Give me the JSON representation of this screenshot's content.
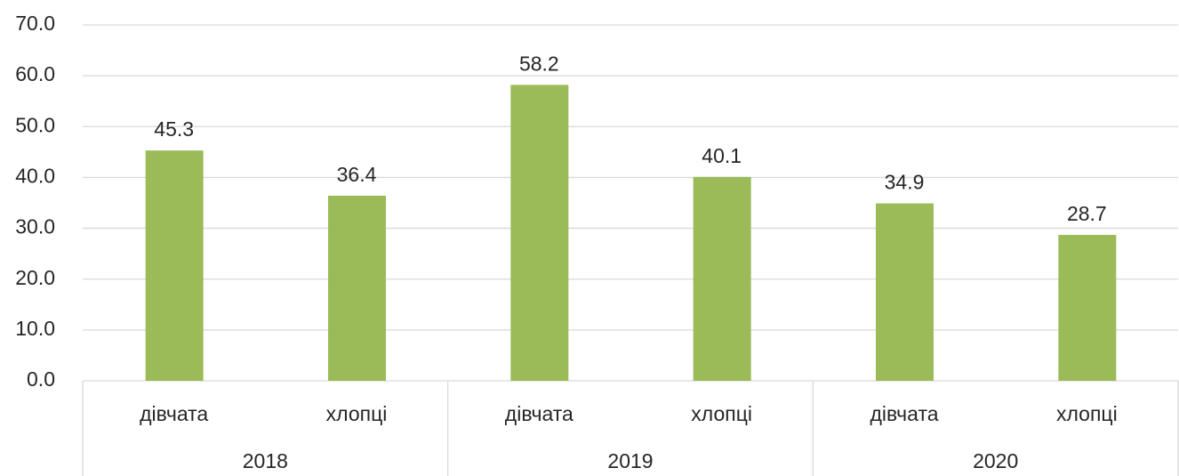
{
  "chart_data": {
    "type": "bar",
    "categories": [
      "дівчата",
      "хлопці",
      "дівчата",
      "хлопці",
      "дівчата",
      "хлопці"
    ],
    "groups": [
      "2018",
      "2019",
      "2020"
    ],
    "values": [
      45.3,
      36.4,
      58.2,
      40.1,
      34.9,
      28.7
    ],
    "color": "#9bbb59",
    "ylim": [
      0,
      70
    ],
    "yticks": [
      {
        "value": 0,
        "label": "0.0"
      },
      {
        "value": 10,
        "label": "10.0"
      },
      {
        "value": 20,
        "label": "20.0"
      },
      {
        "value": 30,
        "label": "30.0"
      },
      {
        "value": 40,
        "label": "40.0"
      },
      {
        "value": 50,
        "label": "50.0"
      },
      {
        "value": 60,
        "label": "60.0"
      },
      {
        "value": 70,
        "label": "70.0"
      }
    ],
    "grid": true
  }
}
